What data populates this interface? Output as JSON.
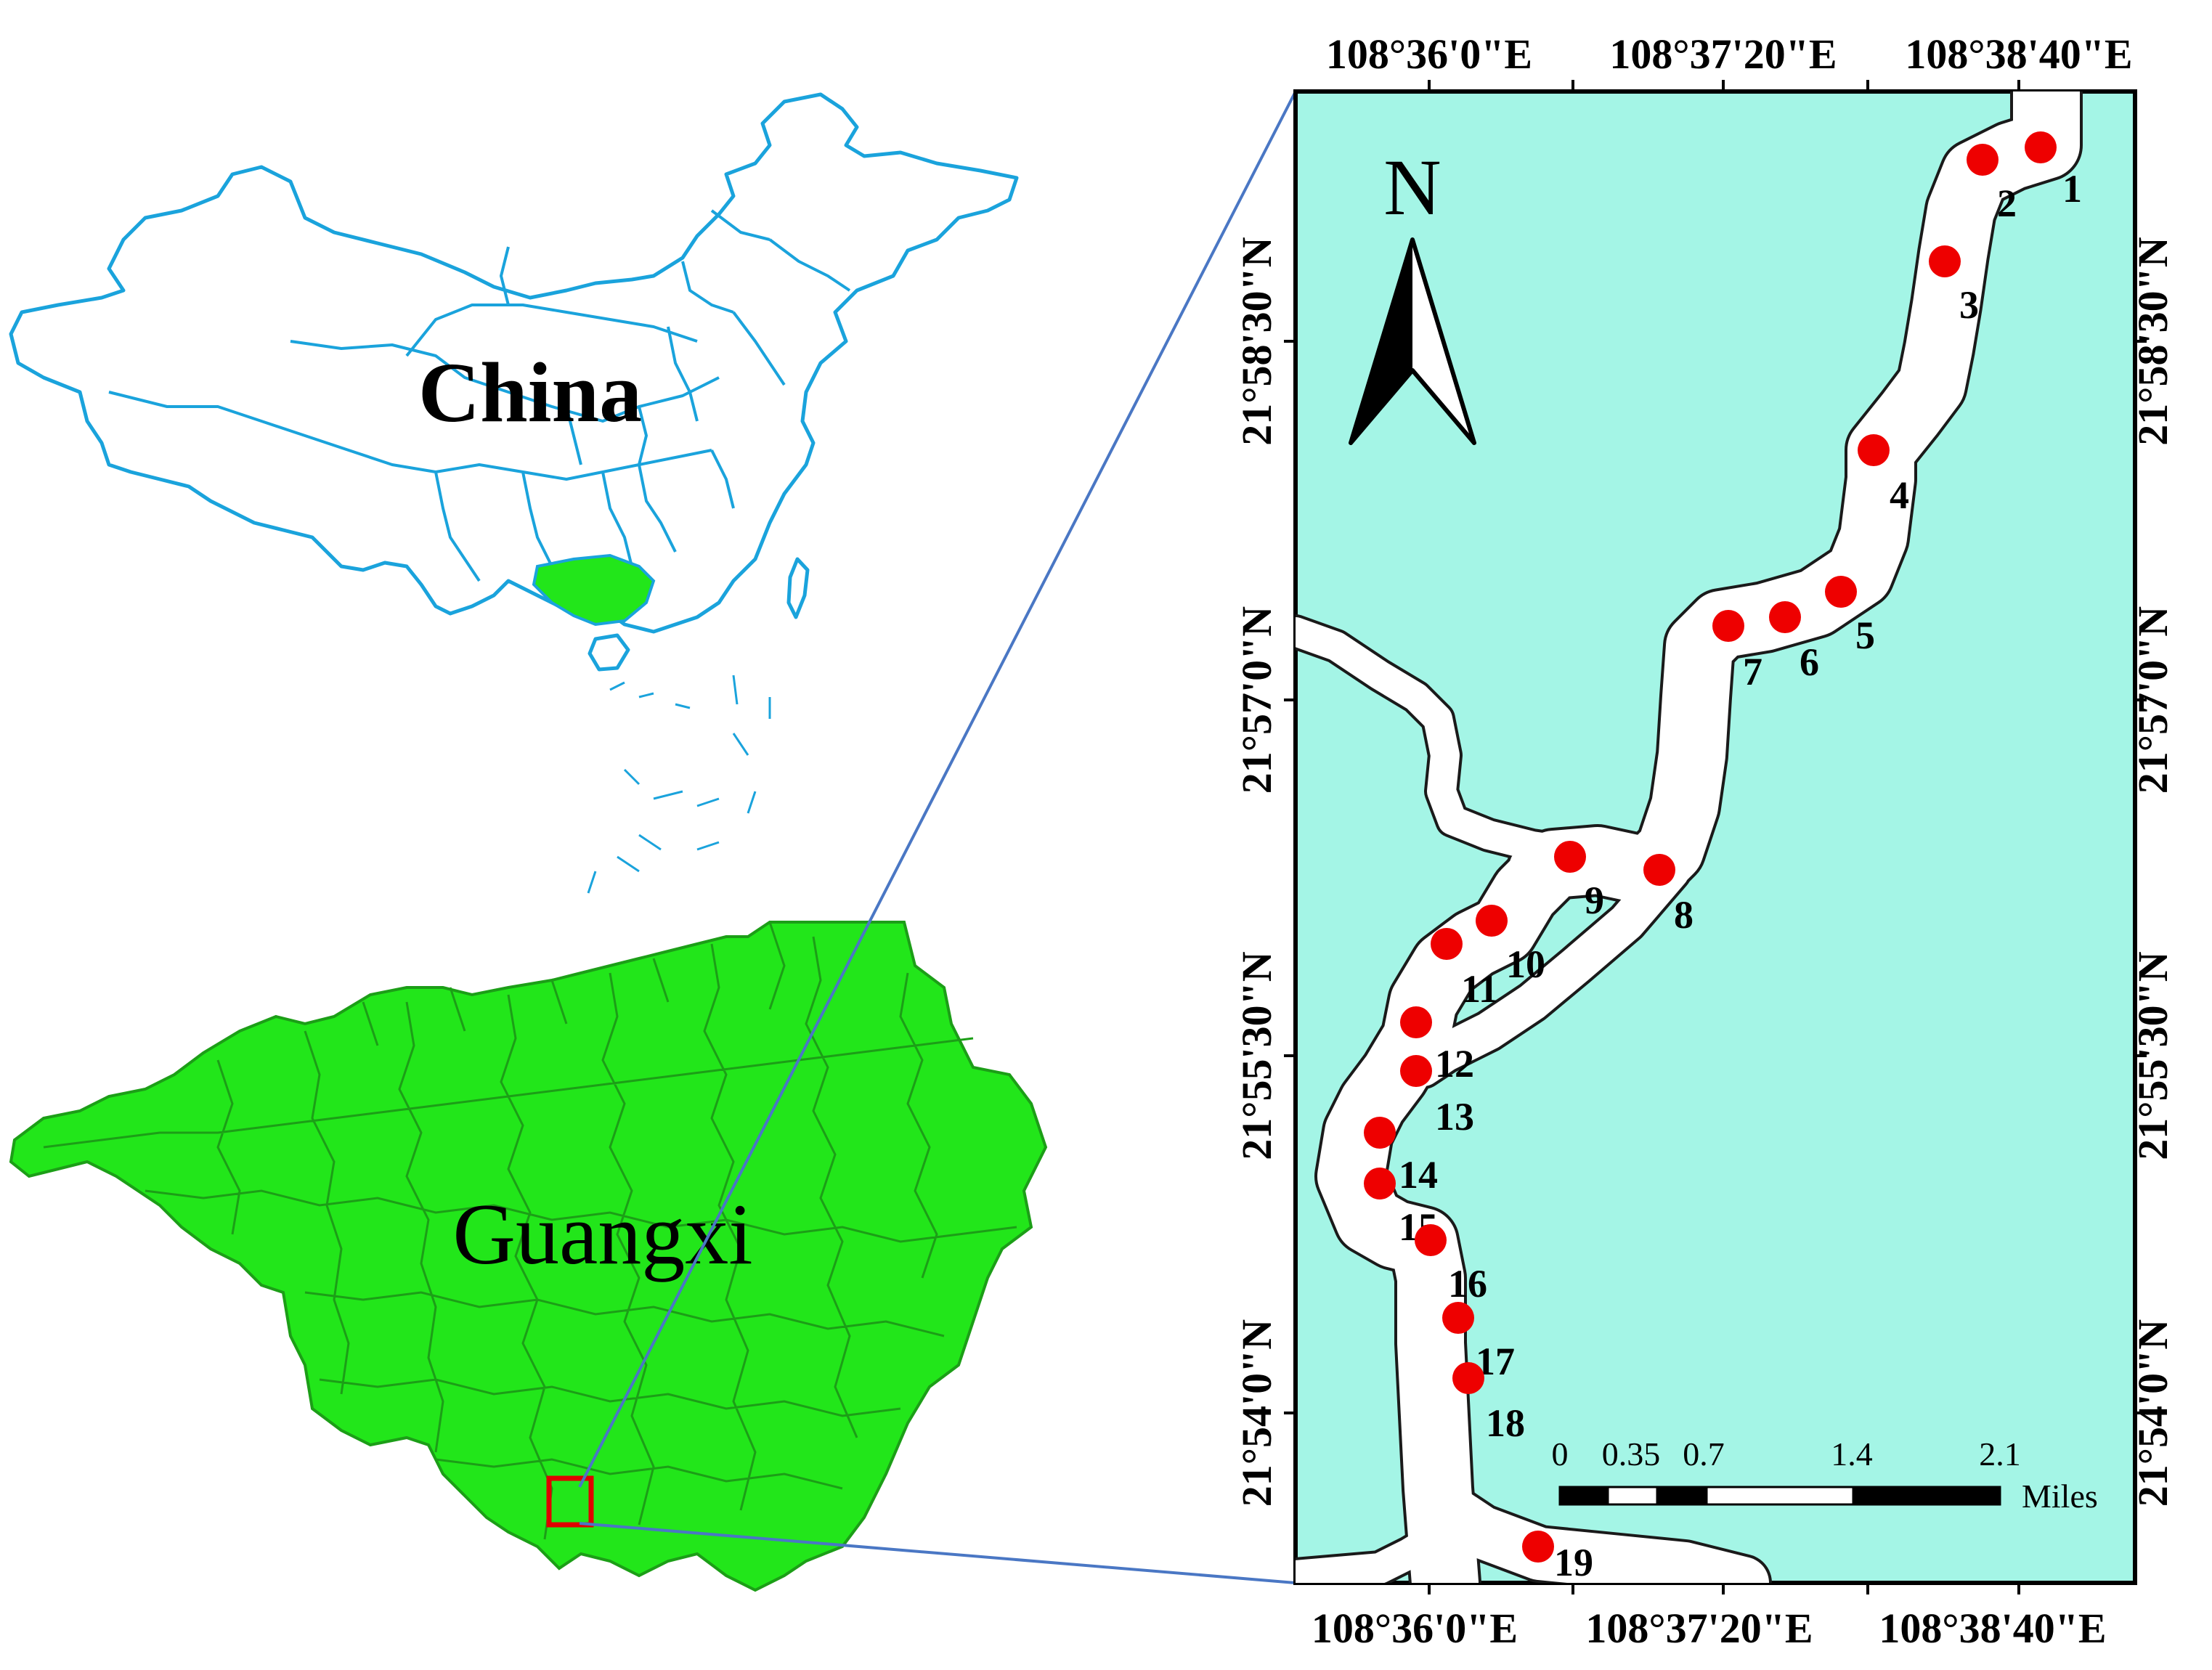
{
  "regions": {
    "china_label": "China",
    "guangxi_label": "Guangxi"
  },
  "colors": {
    "china_outline": "#1AA3DC",
    "province_fill": "#22E61A",
    "province_border": "#1C9E17",
    "water": "#A4F5E6",
    "river": "#FFFFFF",
    "connector": "#4A77C4",
    "marker": "#EE0000",
    "locator_box": "#E00000"
  },
  "map": {
    "north_label": "N",
    "lon_ticks_top": [
      "108°36'0\"E",
      "108°37'20\"E",
      "108°38'40\"E"
    ],
    "lon_ticks_bottom": [
      "108°36'0\"E",
      "108°37'20\"E",
      "108°38'40\"E"
    ],
    "lat_ticks": [
      "21°58'30\"N",
      "21°57'0\"N",
      "21°55'30\"N",
      "21°54'0\"N"
    ],
    "scale_bar": {
      "labels": [
        "0",
        "0.35",
        "0.7",
        "1.4",
        "2.1"
      ],
      "unit": "Miles"
    },
    "sites": [
      "1",
      "2",
      "3",
      "4",
      "5",
      "6",
      "7",
      "8",
      "9",
      "10",
      "11",
      "12",
      "13",
      "14",
      "15",
      "16",
      "17",
      "18",
      "19"
    ]
  }
}
